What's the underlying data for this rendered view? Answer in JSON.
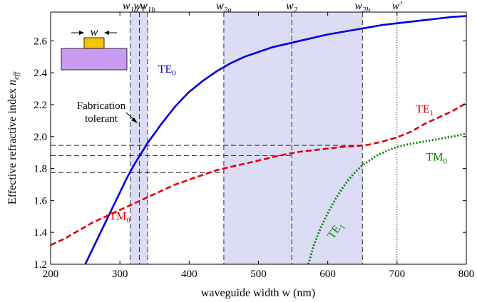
{
  "chart_data": {
    "type": "line",
    "xlabel": "waveguide width w (nm)",
    "ylabel": "Effective refractive index n_eff",
    "xlim": [
      200,
      800
    ],
    "ylim": [
      1.2,
      2.78
    ],
    "xticks": [
      200,
      300,
      400,
      500,
      600,
      700,
      800
    ],
    "xtick_labels": [
      "200",
      "300",
      "400",
      "500",
      "600",
      "700",
      "800"
    ],
    "yticks": [
      1.2,
      1.4,
      1.6,
      1.8,
      2.0,
      2.2,
      2.4,
      2.6
    ],
    "ytick_labels": [
      "1.2",
      "1.4",
      "1.6",
      "1.8",
      "2.0",
      "2.2",
      "2.4",
      "2.6"
    ],
    "grid": false,
    "legend": "none",
    "series": [
      {
        "color": "#0000dd",
        "style": "solid",
        "x": [
          250,
          260,
          270,
          280,
          290,
          300,
          310,
          320,
          330,
          340,
          350,
          360,
          380,
          400,
          420,
          440,
          460,
          480,
          500,
          520,
          540,
          560,
          580,
          600,
          620,
          640,
          660,
          680,
          700,
          720,
          740,
          760,
          780,
          800
        ],
        "y": [
          1.2,
          1.29,
          1.38,
          1.47,
          1.56,
          1.65,
          1.74,
          1.82,
          1.89,
          1.96,
          2.02,
          2.08,
          2.19,
          2.28,
          2.35,
          2.41,
          2.46,
          2.5,
          2.53,
          2.56,
          2.58,
          2.6,
          2.62,
          2.64,
          2.655,
          2.67,
          2.685,
          2.7,
          2.71,
          2.72,
          2.73,
          2.74,
          2.75,
          2.755
        ]
      },
      {
        "color": "#dd0000",
        "style": "dashed",
        "x": [
          200,
          220,
          240,
          260,
          280,
          300,
          320,
          340,
          360,
          380,
          400,
          420,
          440,
          460,
          480,
          500,
          520,
          540,
          560,
          580,
          600,
          620,
          640,
          660,
          680,
          700,
          720,
          740,
          760,
          780,
          800
        ],
        "y": [
          1.32,
          1.36,
          1.41,
          1.46,
          1.5,
          1.54,
          1.58,
          1.62,
          1.66,
          1.7,
          1.73,
          1.76,
          1.79,
          1.81,
          1.83,
          1.85,
          1.87,
          1.89,
          1.905,
          1.915,
          1.925,
          1.935,
          1.94,
          1.95,
          1.97,
          1.995,
          2.03,
          2.08,
          2.12,
          2.16,
          2.21
        ]
      },
      {
        "color": "#008800",
        "style": "dotted",
        "x": [
          572,
          580,
          590,
          600,
          610,
          620,
          630,
          640,
          650,
          660,
          670,
          680,
          690,
          700,
          720,
          740,
          760,
          780,
          800
        ],
        "y": [
          1.2,
          1.32,
          1.43,
          1.52,
          1.6,
          1.67,
          1.73,
          1.78,
          1.82,
          1.85,
          1.88,
          1.9,
          1.92,
          1.935,
          1.955,
          1.97,
          1.985,
          2.0,
          2.02
        ]
      }
    ],
    "curve_labels": [
      {
        "text": "TE",
        "sub": "0",
        "color": "#0000dd",
        "x": 368,
        "y": 2.4
      },
      {
        "text": "TE",
        "sub": "1",
        "color": "#dd0000",
        "x": 740,
        "y": 2.15
      },
      {
        "text": "TM",
        "sub": "0",
        "color": "#dd0000",
        "x": 300,
        "y": 1.48
      },
      {
        "text": "TM",
        "sub": "0",
        "color": "#008800",
        "x": 757,
        "y": 1.85
      },
      {
        "text": "TE",
        "sub": "1",
        "color": "#008800",
        "x": 615,
        "y": 1.4
      }
    ],
    "shaded_regions": [
      {
        "x0": 315,
        "x1": 340,
        "color": "#dcdcf5"
      },
      {
        "x0": 450,
        "x1": 650,
        "color": "#dcdcf5"
      }
    ],
    "vertical_markers": [
      {
        "x": 315,
        "label": "w",
        "sub": "1a",
        "style": "dashed"
      },
      {
        "x": 328,
        "label": "w",
        "sub": "1",
        "style": "dashed"
      },
      {
        "x": 340,
        "label": "w",
        "sub": "1b",
        "style": "dashed"
      },
      {
        "x": 450,
        "label": "w",
        "sub": "2a",
        "style": "dashed"
      },
      {
        "x": 548,
        "label": "w",
        "sub": "2",
        "style": "dashed"
      },
      {
        "x": 650,
        "label": "w",
        "sub": "2b",
        "style": "dashed"
      },
      {
        "x": 700,
        "label": "w′",
        "sub": "",
        "style": "dotted"
      }
    ],
    "horizontal_markers": [
      {
        "y": 1.945,
        "x_end": 650
      },
      {
        "y": 1.88,
        "x_end": 548
      },
      {
        "y": 1.775,
        "x_end": 450
      }
    ],
    "annotation": {
      "line1": "Fabrication",
      "line2": "tolerant"
    },
    "inset": {
      "label": "w",
      "top_color": "#f5c400",
      "bottom_color": "#c89bf0"
    }
  }
}
